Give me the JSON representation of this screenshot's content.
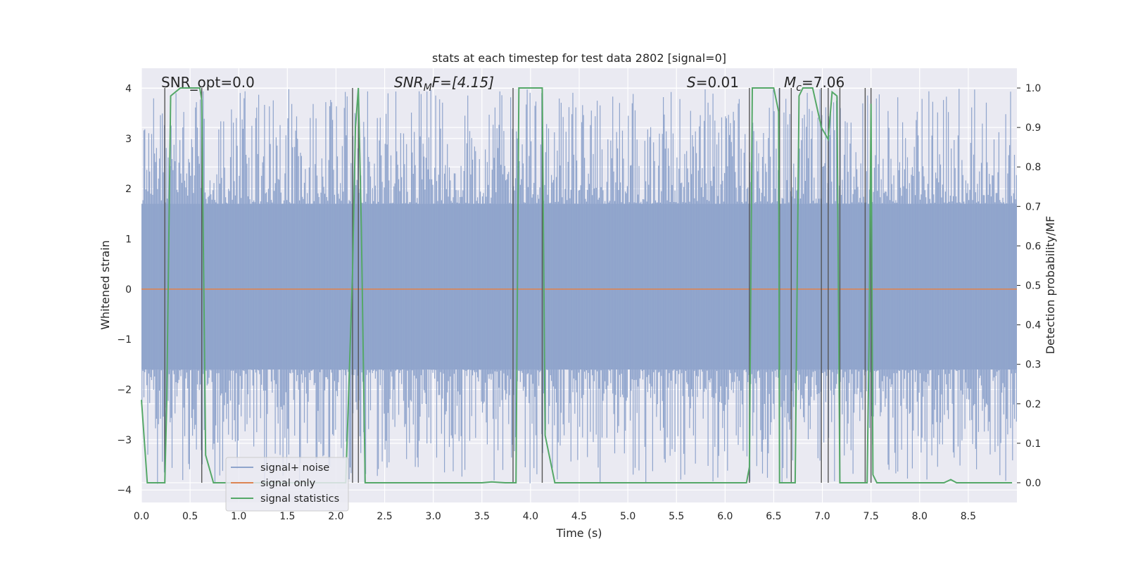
{
  "chart_data": {
    "type": "line",
    "title": "stats at each timestep for test data 2802 [signal=0]",
    "xlabel": "Time (s)",
    "ylabel": "Whitened strain",
    "y2label": "Detection probability/MF",
    "xlim": [
      0.0,
      9.0
    ],
    "ylim": [
      -4.25,
      4.4
    ],
    "y2lim": [
      -0.05,
      1.05
    ],
    "xticks": [
      "0.0",
      "0.5",
      "1.0",
      "1.5",
      "2.0",
      "2.5",
      "3.0",
      "3.5",
      "4.0",
      "4.5",
      "5.0",
      "5.5",
      "6.0",
      "6.5",
      "7.0",
      "7.5",
      "8.0",
      "8.5"
    ],
    "xtick_values": [
      0.0,
      0.5,
      1.0,
      1.5,
      2.0,
      2.5,
      3.0,
      3.5,
      4.0,
      4.5,
      5.0,
      5.5,
      6.0,
      6.5,
      7.0,
      7.5,
      8.0,
      8.5
    ],
    "yticks": [
      "−4",
      "−3",
      "−2",
      "−1",
      "0",
      "1",
      "2",
      "3",
      "4"
    ],
    "ytick_values": [
      -4,
      -3,
      -2,
      -1,
      0,
      1,
      2,
      3,
      4
    ],
    "y2ticks": [
      "0.0",
      "0.1",
      "0.2",
      "0.3",
      "0.4",
      "0.5",
      "0.6",
      "0.7",
      "0.8",
      "0.9",
      "1.0"
    ],
    "y2tick_values": [
      0.0,
      0.1,
      0.2,
      0.3,
      0.4,
      0.5,
      0.6,
      0.7,
      0.8,
      0.9,
      1.0
    ],
    "grid": true,
    "legend": {
      "position": "lower-left",
      "entries": [
        {
          "label": "signal+ noise",
          "color": "#8fa4cc"
        },
        {
          "label": "signal only",
          "color": "#dd8452"
        },
        {
          "label": "signal statistics",
          "color": "#55a868"
        }
      ]
    },
    "annotations": {
      "snr_opt": "SNR_opt=0.0",
      "snr_mf_label": "SNR",
      "snr_mf_sub": "M",
      "snr_mf_tail": "F=[4.15]",
      "s_italic": "S",
      "s_value": "=0.01",
      "mc_italic": "M",
      "mc_sub": "c",
      "mc_value": "=7.06"
    },
    "noise_band": {
      "dense_range": [
        -1.6,
        1.7
      ],
      "spike_range": [
        -3.9,
        4.0
      ],
      "samples": 900,
      "seed": 2802
    },
    "signal_only": {
      "value": 0.0
    },
    "boundary_lines_x": [
      0.24,
      0.62,
      2.17,
      2.23,
      3.82,
      4.12,
      6.25,
      6.56,
      6.68,
      6.99,
      7.06,
      7.18,
      7.44,
      7.5
    ],
    "signal_statistics": {
      "x": [
        0.0,
        0.06,
        0.1,
        0.24,
        0.26,
        0.3,
        0.4,
        0.6,
        0.62,
        0.66,
        0.74,
        0.8,
        2.1,
        2.17,
        2.2,
        2.23,
        2.26,
        2.3,
        3.2,
        3.5,
        3.6,
        3.74,
        3.8,
        3.85,
        3.88,
        4.0,
        4.12,
        4.15,
        4.25,
        6.18,
        6.22,
        6.25,
        6.28,
        6.35,
        6.5,
        6.55,
        6.56,
        6.6,
        6.68,
        6.72,
        6.76,
        6.8,
        6.85,
        6.9,
        6.99,
        7.06,
        7.1,
        7.15,
        7.18,
        7.2,
        7.44,
        7.46,
        7.48,
        7.5,
        7.52,
        7.56,
        7.6,
        8.0,
        8.25,
        8.32,
        8.38,
        8.45,
        8.95
      ],
      "y": [
        0.21,
        0.0,
        0.0,
        0.0,
        0.2,
        0.98,
        1.0,
        1.0,
        0.97,
        0.07,
        0.0,
        0.0,
        0.0,
        0.53,
        0.9,
        1.0,
        0.65,
        0.0,
        0.0,
        0.0,
        0.002,
        0.0,
        0.0,
        0.0,
        1.0,
        1.0,
        1.0,
        0.12,
        0.0,
        0.0,
        0.0,
        0.04,
        1.0,
        1.0,
        1.0,
        0.94,
        0.0,
        0.0,
        0.0,
        0.0,
        0.98,
        1.0,
        1.0,
        1.0,
        0.9,
        0.87,
        0.99,
        0.98,
        0.0,
        0.0,
        0.0,
        0.0,
        0.35,
        0.96,
        0.02,
        0.0,
        0.0,
        0.0,
        0.0,
        0.008,
        0.0,
        0.0,
        0.0
      ]
    }
  }
}
